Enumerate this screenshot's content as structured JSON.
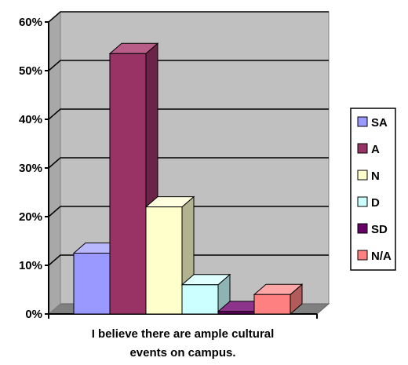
{
  "chart_data": {
    "type": "bar",
    "title": "",
    "xlabel_lines": [
      "I believe there are ample cultural",
      "events on campus."
    ],
    "ylabel": "",
    "ylim": [
      0,
      60
    ],
    "y_ticks": [
      "0%",
      "10%",
      "20%",
      "30%",
      "40%",
      "50%",
      "60%"
    ],
    "y_tick_values": [
      0,
      10,
      20,
      30,
      40,
      50,
      60
    ],
    "grid": true,
    "legend_position": "right",
    "series": [
      {
        "name": "SA",
        "value": 12.5,
        "color": "#9999ff",
        "side": "#6b6bb3",
        "top": "#b8b8ff"
      },
      {
        "name": "A",
        "value": 53.5,
        "color": "#993366",
        "side": "#6b2447",
        "top": "#b85c88"
      },
      {
        "name": "N",
        "value": 22.0,
        "color": "#ffffcc",
        "side": "#b3b38f",
        "top": "#ffffe0"
      },
      {
        "name": "D",
        "value": 6.0,
        "color": "#ccffff",
        "side": "#8fb3b3",
        "top": "#e0ffff"
      },
      {
        "name": "SD",
        "value": 0.5,
        "color": "#660066",
        "side": "#470047",
        "top": "#8c338c"
      },
      {
        "name": "N/A",
        "value": 4.0,
        "color": "#ff8080",
        "side": "#b35a5a",
        "top": "#ffa6a6"
      }
    ]
  }
}
